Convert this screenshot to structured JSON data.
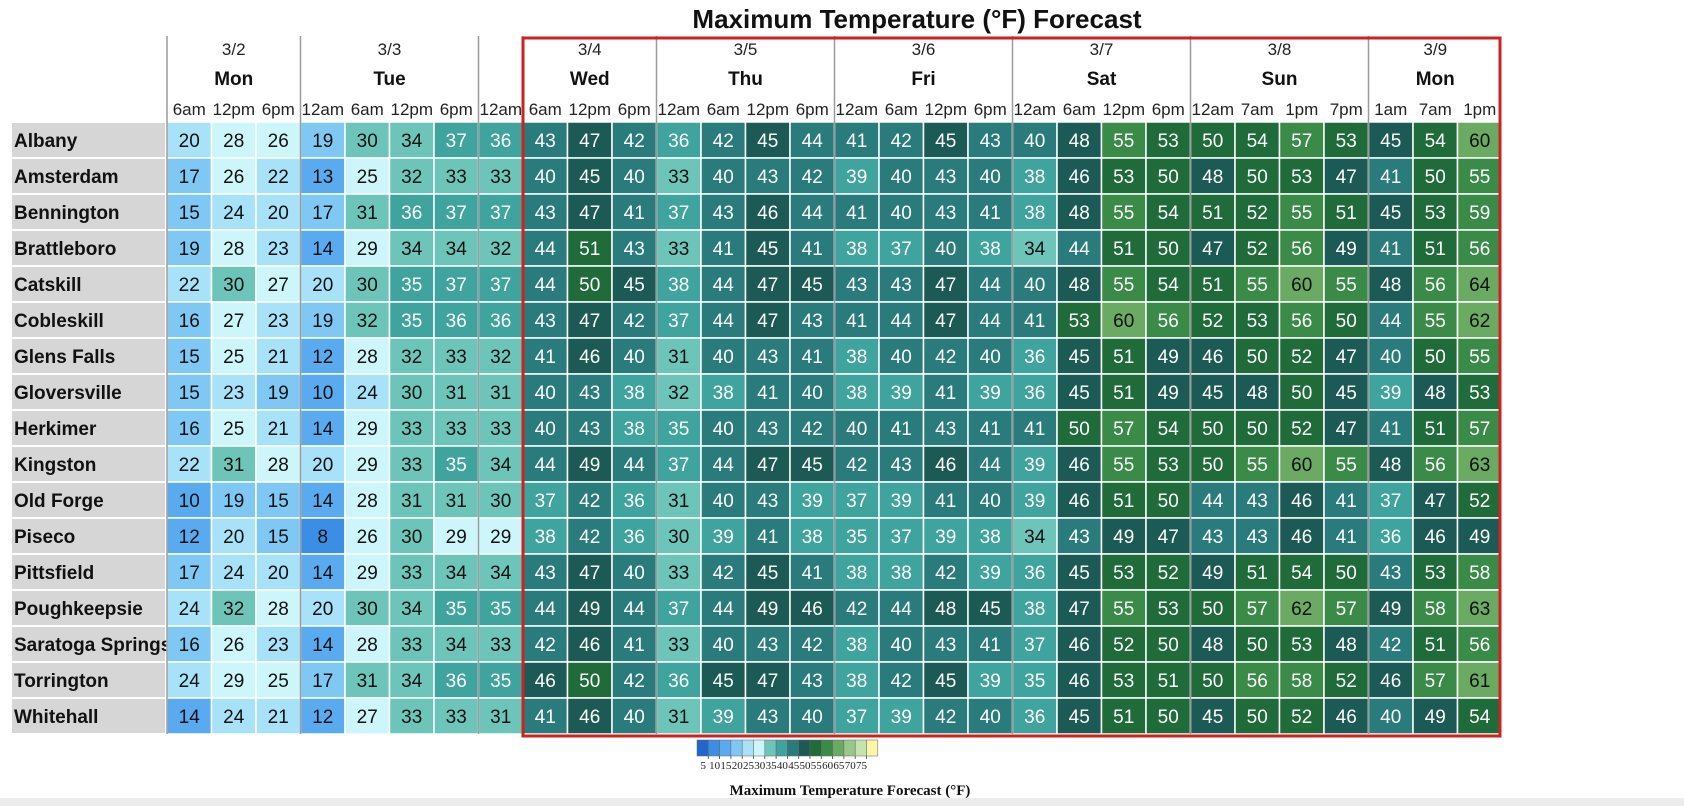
{
  "chart_data": {
    "type": "heatmap",
    "title": "Maximum Temperature (°F) Forecast",
    "days": [
      {
        "date": "3/2",
        "day": "Mon",
        "span": 3
      },
      {
        "date": "3/3",
        "day": "Tue",
        "span": 4
      },
      {
        "date": "",
        "day": "",
        "span": 1
      },
      {
        "date": "3/4",
        "day": "Wed",
        "span": 3
      },
      {
        "date": "3/5",
        "day": "Thu",
        "span": 4
      },
      {
        "date": "3/6",
        "day": "Fri",
        "span": 4
      },
      {
        "date": "3/7",
        "day": "Sat",
        "span": 4
      },
      {
        "date": "3/8",
        "day": "Sun",
        "span": 4
      },
      {
        "date": "3/9",
        "day": "Mon",
        "span": 3
      }
    ],
    "hours": [
      "6am",
      "12pm",
      "6pm",
      "12am",
      "6am",
      "12pm",
      "6pm",
      "12am",
      "6am",
      "12pm",
      "6pm",
      "12am",
      "6am",
      "12pm",
      "6pm",
      "12am",
      "6am",
      "12pm",
      "6pm",
      "12am",
      "6am",
      "12pm",
      "6pm",
      "12am",
      "7am",
      "1pm",
      "7pm",
      "1am",
      "7am",
      "1pm"
    ],
    "rows": [
      {
        "name": "Albany",
        "values": [
          20,
          28,
          26,
          19,
          30,
          34,
          37,
          36,
          43,
          47,
          42,
          36,
          42,
          45,
          44,
          41,
          42,
          45,
          43,
          40,
          48,
          55,
          53,
          50,
          54,
          57,
          53,
          45,
          54,
          60
        ]
      },
      {
        "name": "Amsterdam",
        "values": [
          17,
          26,
          22,
          13,
          25,
          32,
          33,
          33,
          40,
          45,
          40,
          33,
          40,
          43,
          42,
          39,
          40,
          43,
          40,
          38,
          46,
          53,
          50,
          48,
          50,
          53,
          47,
          41,
          50,
          55
        ]
      },
      {
        "name": "Bennington",
        "values": [
          15,
          24,
          20,
          17,
          31,
          36,
          37,
          37,
          43,
          47,
          41,
          37,
          43,
          46,
          44,
          41,
          40,
          43,
          41,
          38,
          48,
          55,
          54,
          51,
          52,
          55,
          51,
          45,
          53,
          59
        ]
      },
      {
        "name": "Brattleboro",
        "values": [
          19,
          28,
          23,
          14,
          29,
          34,
          34,
          32,
          44,
          51,
          43,
          33,
          41,
          45,
          41,
          38,
          37,
          40,
          38,
          34,
          44,
          51,
          50,
          47,
          52,
          56,
          49,
          41,
          51,
          56
        ]
      },
      {
        "name": "Catskill",
        "values": [
          22,
          30,
          27,
          20,
          30,
          35,
          37,
          37,
          44,
          50,
          45,
          38,
          44,
          47,
          45,
          43,
          43,
          47,
          44,
          40,
          48,
          55,
          54,
          51,
          55,
          60,
          55,
          48,
          56,
          64
        ]
      },
      {
        "name": "Cobleskill",
        "values": [
          16,
          27,
          23,
          19,
          32,
          35,
          36,
          36,
          43,
          47,
          42,
          37,
          44,
          47,
          43,
          41,
          44,
          47,
          44,
          41,
          53,
          60,
          56,
          52,
          53,
          56,
          50,
          44,
          55,
          62
        ]
      },
      {
        "name": "Glens Falls",
        "values": [
          15,
          25,
          21,
          12,
          28,
          32,
          33,
          32,
          41,
          46,
          40,
          31,
          40,
          43,
          41,
          38,
          40,
          42,
          40,
          36,
          45,
          51,
          49,
          46,
          50,
          52,
          47,
          40,
          50,
          55
        ]
      },
      {
        "name": "Gloversville",
        "values": [
          15,
          23,
          19,
          10,
          24,
          30,
          31,
          31,
          40,
          43,
          38,
          32,
          38,
          41,
          40,
          38,
          39,
          41,
          39,
          36,
          45,
          51,
          49,
          45,
          48,
          50,
          45,
          39,
          48,
          53
        ]
      },
      {
        "name": "Herkimer",
        "values": [
          16,
          25,
          21,
          14,
          29,
          33,
          33,
          33,
          40,
          43,
          38,
          35,
          40,
          43,
          42,
          40,
          41,
          43,
          41,
          41,
          50,
          57,
          54,
          50,
          50,
          52,
          47,
          41,
          51,
          57
        ]
      },
      {
        "name": "Kingston",
        "values": [
          22,
          31,
          28,
          20,
          29,
          33,
          35,
          34,
          44,
          49,
          44,
          37,
          44,
          47,
          45,
          42,
          43,
          46,
          44,
          39,
          46,
          55,
          53,
          50,
          55,
          60,
          55,
          48,
          56,
          63
        ]
      },
      {
        "name": "Old Forge",
        "values": [
          10,
          19,
          15,
          14,
          28,
          31,
          31,
          30,
          37,
          42,
          36,
          31,
          40,
          43,
          39,
          37,
          39,
          41,
          40,
          39,
          46,
          51,
          50,
          44,
          43,
          46,
          41,
          37,
          47,
          52
        ]
      },
      {
        "name": "Piseco",
        "values": [
          12,
          20,
          15,
          8,
          26,
          30,
          29,
          29,
          38,
          42,
          36,
          30,
          39,
          41,
          38,
          35,
          37,
          39,
          38,
          34,
          43,
          49,
          47,
          43,
          43,
          46,
          41,
          36,
          46,
          49
        ]
      },
      {
        "name": "Pittsfield",
        "values": [
          17,
          24,
          20,
          14,
          29,
          33,
          34,
          34,
          43,
          47,
          40,
          33,
          42,
          45,
          41,
          38,
          38,
          42,
          39,
          36,
          45,
          53,
          52,
          49,
          51,
          54,
          50,
          43,
          53,
          58
        ]
      },
      {
        "name": "Poughkeepsie",
        "values": [
          24,
          32,
          28,
          20,
          30,
          34,
          35,
          35,
          44,
          49,
          44,
          37,
          44,
          49,
          46,
          42,
          44,
          48,
          45,
          38,
          47,
          55,
          53,
          50,
          57,
          62,
          57,
          49,
          58,
          63
        ]
      },
      {
        "name": "Saratoga Springs",
        "values": [
          16,
          26,
          23,
          14,
          28,
          33,
          34,
          33,
          42,
          46,
          41,
          33,
          40,
          43,
          42,
          38,
          40,
          43,
          41,
          37,
          46,
          52,
          50,
          48,
          50,
          53,
          48,
          42,
          51,
          56
        ]
      },
      {
        "name": "Torrington",
        "values": [
          24,
          29,
          25,
          17,
          31,
          34,
          36,
          35,
          46,
          50,
          42,
          36,
          45,
          47,
          43,
          38,
          42,
          45,
          39,
          35,
          46,
          53,
          51,
          50,
          56,
          58,
          52,
          46,
          57,
          61
        ]
      },
      {
        "name": "Whitehall",
        "values": [
          14,
          24,
          21,
          12,
          27,
          33,
          33,
          31,
          41,
          46,
          40,
          31,
          39,
          43,
          40,
          37,
          39,
          42,
          40,
          36,
          45,
          51,
          50,
          45,
          50,
          52,
          46,
          40,
          49,
          54
        ]
      }
    ],
    "color_bins": {
      "edges": [
        5,
        10,
        15,
        20,
        25,
        30,
        35,
        40,
        45,
        50,
        55,
        60,
        65,
        70,
        75
      ],
      "colors": [
        "#2266cc",
        "#3a8ee6",
        "#5aaaf0",
        "#80c8f4",
        "#a8e2f8",
        "#cdf6fb",
        "#6cc5b8",
        "#3fa49e",
        "#2a7c7c",
        "#1c5a55",
        "#1f6b3a",
        "#3a8a48",
        "#6aaa62",
        "#98c78a",
        "#c5e3ad",
        "#fbf7a6"
      ]
    },
    "highlight_box": {
      "start_col": 8,
      "end_col": 29,
      "color": "#cc2222"
    },
    "legend": {
      "ticks": [
        "5",
        "10",
        "15",
        "20",
        "25",
        "30",
        "35",
        "40",
        "45",
        "50",
        "55",
        "60",
        "65",
        "70",
        "75"
      ],
      "label": "Maximum Temperature Forecast (°F)"
    }
  }
}
